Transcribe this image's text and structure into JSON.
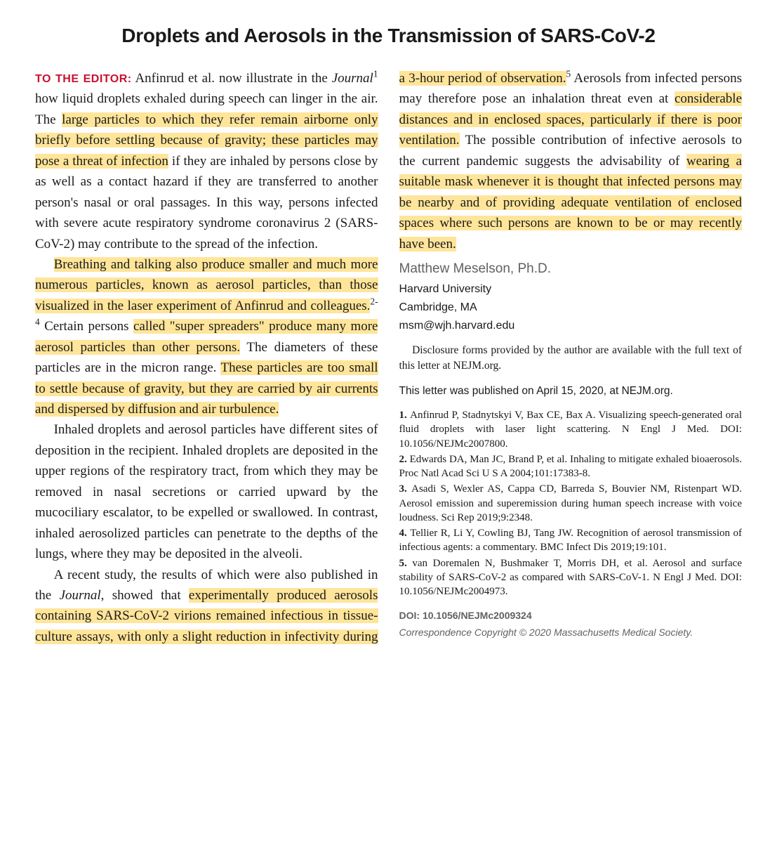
{
  "title": "Droplets and Aerosols in the Transmission of SARS-CoV-2",
  "editor_label": "TO THE EDITOR:",
  "highlight_color": "#ffe59a",
  "accent_color": "#c8102e",
  "body_font": "Georgia",
  "sans_font": "Arial",
  "para1": {
    "t1": " Anfinrud et al. now illustrate in the ",
    "journal": "Journal",
    "sup1": "1",
    "t2": " how liquid droplets exhaled during speech can linger in the air. The ",
    "h1": "large particles to which they refer remain airborne only briefly before settling because of gravity; these particles may pose a threat of infection",
    "t3": " if they are inhaled by persons close by as well as a contact hazard if they are transferred to another person's nasal or oral passages. In this way, persons infected with severe acute respiratory syndrome coronavirus 2 (SARS-CoV-2) may contribute to the spread of the infection."
  },
  "para2": {
    "h1": "Breathing and talking also produce smaller and much more numerous particles, known as aerosol particles, than those visualized in the laser experiment of Anfinrud and colleagues.",
    "sup1": "2-4",
    "t1": " Certain persons ",
    "h2": "called \"super spreaders\" produce many more aerosol particles than other persons.",
    "t2": " The diameters of these particles are in the micron range. ",
    "h3": "These particles are too small to settle because of gravity, but they are carried by air currents and dispersed by diffusion and air turbulence."
  },
  "para3": {
    "t1": "Inhaled droplets and aerosol particles have different sites of deposition in the recipient. Inhaled droplets are deposited in the upper regions of the respiratory tract, from which they may be removed in nasal secretions or carried upward by the mucociliary escalator, to be expelled or swallowed. In contrast, inhaled aerosolized particles can penetrate to the depths of the lungs, where they may be deposited in the alveoli."
  },
  "para4": {
    "t1": "A recent study, the results of which were also published in the ",
    "journal": "Journal",
    "t2": ", showed that ",
    "h1": "experimentally produced aerosols containing SARS-CoV-2 virions remained infectious in tissue-culture assays, with only a slight reduction in infectivity during a 3-hour period of observation.",
    "sup1": "5",
    "t3": " Aerosols from infected persons may therefore pose an inhalation threat even at ",
    "h2": "considerable distances and in enclosed spaces, particularly if there is poor ventilation.",
    "t4": " The possible contribution of infective aerosols to the current pandemic suggests the advisability of ",
    "h3": "wearing a suitable mask whenever it is thought that infected persons may be nearby and of providing adequate ventilation of enclosed spaces where such persons are known to be or may recently have been."
  },
  "author": {
    "name": "Matthew Meselson, Ph.D.",
    "affil1": "Harvard University",
    "affil2": "Cambridge, MA",
    "email": "msm@wjh.harvard.edu"
  },
  "disclosure": "Disclosure forms provided by the author are available with the full text of this letter at NEJM.org.",
  "pubnote": "This letter was published on April 15, 2020, at NEJM.org.",
  "references": [
    {
      "num": "1.",
      "text": "Anfinrud P, Stadnytskyi V, Bax CE, Bax A. Visualizing speech-generated oral fluid droplets with laser light scattering. N Engl J Med. DOI: 10.1056/NEJMc2007800."
    },
    {
      "num": "2.",
      "text": "Edwards DA, Man JC, Brand P, et al. Inhaling to mitigate exhaled bioaerosols. Proc Natl Acad Sci U S A 2004;101:17383-8."
    },
    {
      "num": "3.",
      "text": "Asadi S, Wexler AS, Cappa CD, Barreda S, Bouvier NM, Ristenpart WD. Aerosol emission and superemission during human speech increase with voice loudness. Sci Rep 2019;9:2348."
    },
    {
      "num": "4.",
      "text": "Tellier R, Li Y, Cowling BJ, Tang JW. Recognition of aerosol transmission of infectious agents: a commentary. BMC Infect Dis 2019;19:101."
    },
    {
      "num": "5.",
      "text": "van Doremalen N, Bushmaker T, Morris DH, et al. Aerosol and surface stability of SARS-CoV-2 as compared with SARS-CoV-1. N Engl J Med. DOI: 10.1056/NEJMc2004973."
    }
  ],
  "doi": "DOI: 10.1056/NEJMc2009324",
  "copyright": "Correspondence Copyright © 2020 Massachusetts Medical Society."
}
